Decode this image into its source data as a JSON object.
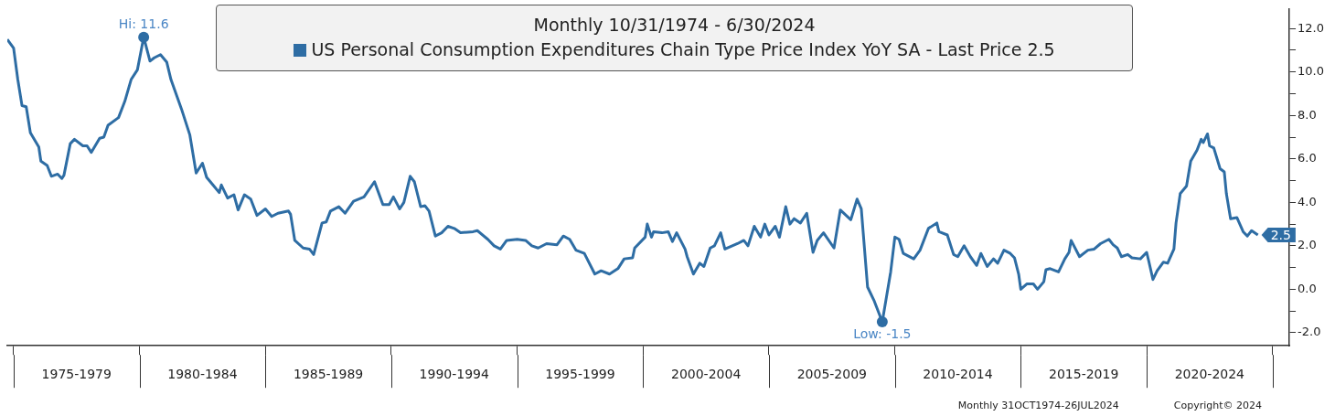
{
  "chart_data": {
    "type": "line",
    "title": "Monthly 10/31/1974 - 6/30/2024",
    "legend": "top",
    "marker": "none",
    "line_style": "solid",
    "grid": false,
    "x": [
      "1974-10",
      "1975-01",
      "1975-03",
      "1975-05",
      "1975-07",
      "1975-09",
      "1976-01",
      "1976-02",
      "1976-05",
      "1976-07",
      "1976-10",
      "1976-12",
      "1977-01",
      "1977-04",
      "1977-06",
      "1977-10",
      "1977-12",
      "1978-02",
      "1978-06",
      "1978-08",
      "1978-10",
      "1979-03",
      "1979-06",
      "1979-09",
      "1979-12",
      "1980-03",
      "1980-06",
      "1980-08",
      "1980-11",
      "1981-02",
      "1981-04",
      "1981-09",
      "1982-01",
      "1982-04",
      "1982-07",
      "1982-09",
      "1982-12",
      "1983-03",
      "1983-04",
      "1983-07",
      "1983-10",
      "1983-12",
      "1984-03",
      "1984-06",
      "1984-09",
      "1985-01",
      "1985-04",
      "1985-07",
      "1985-12",
      "1986-01",
      "1986-03",
      "1986-07",
      "1986-10",
      "1986-12",
      "1987-04",
      "1987-06",
      "1987-08",
      "1987-12",
      "1988-03",
      "1988-07",
      "1988-12",
      "1989-05",
      "1989-09",
      "1989-12",
      "1990-02",
      "1990-05",
      "1990-07",
      "1990-10",
      "1990-12",
      "1991-03",
      "1991-05",
      "1991-07",
      "1991-10",
      "1992-01",
      "1992-04",
      "1992-07",
      "1992-10",
      "1993-04",
      "1993-06",
      "1993-11",
      "1994-02",
      "1994-05",
      "1994-08",
      "1995-01",
      "1995-05",
      "1995-08",
      "1995-11",
      "1996-03",
      "1996-08",
      "1996-11",
      "1997-02",
      "1997-05",
      "1997-09",
      "1998-02",
      "1998-05",
      "1998-09",
      "1999-01",
      "1999-04",
      "1999-08",
      "1999-09",
      "2000-02",
      "2000-03",
      "2000-05",
      "2000-06",
      "2000-10",
      "2001-01",
      "2001-03",
      "2001-05",
      "2001-09",
      "2001-10",
      "2002-01",
      "2002-04",
      "2002-06",
      "2002-09",
      "2002-11",
      "2003-02",
      "2003-04",
      "2003-10",
      "2004-01",
      "2004-03",
      "2004-06",
      "2004-09",
      "2004-11",
      "2005-01",
      "2005-04",
      "2005-06",
      "2005-09",
      "2005-11",
      "2006-01",
      "2006-04",
      "2006-07",
      "2006-10",
      "2006-12",
      "2007-03",
      "2007-08",
      "2007-11",
      "2008-04",
      "2008-07",
      "2008-09",
      "2008-12",
      "2009-03",
      "2009-07",
      "2009-11",
      "2010-01",
      "2010-03",
      "2010-05",
      "2010-10",
      "2011-01",
      "2011-05",
      "2011-09",
      "2011-10",
      "2012-02",
      "2012-05",
      "2012-07",
      "2012-10",
      "2013-01",
      "2013-04",
      "2013-06",
      "2013-09",
      "2013-12",
      "2014-02",
      "2014-05",
      "2014-08",
      "2014-10",
      "2014-12",
      "2015-01",
      "2015-04",
      "2015-07",
      "2015-09",
      "2015-12",
      "2016-01",
      "2016-03",
      "2016-07",
      "2016-10",
      "2016-12",
      "2017-01",
      "2017-05",
      "2017-09",
      "2017-12",
      "2018-03",
      "2018-07",
      "2018-09",
      "2018-11",
      "2019-01",
      "2019-04",
      "2019-06",
      "2019-10",
      "2020-01",
      "2020-02",
      "2020-04",
      "2020-06",
      "2020-09",
      "2020-11",
      "2021-02",
      "2021-03",
      "2021-05",
      "2021-08",
      "2021-10",
      "2022-01",
      "2022-03",
      "2022-04",
      "2022-06",
      "2022-07",
      "2022-09",
      "2022-12",
      "2023-02",
      "2023-03",
      "2023-05",
      "2023-08",
      "2023-11",
      "2024-01",
      "2024-03",
      "2024-06"
    ],
    "series": [
      {
        "name": "US Personal Consumption Expenditures Chain Type Price Index YoY SA - Last Price 2.5",
        "color": "#2e6da4",
        "values": [
          11.5,
          11.1,
          9.65,
          8.45,
          8.4,
          7.2,
          6.55,
          5.9,
          5.7,
          5.2,
          5.3,
          5.1,
          5.25,
          6.7,
          6.9,
          6.6,
          6.6,
          6.3,
          6.95,
          7.0,
          7.55,
          7.9,
          8.65,
          9.65,
          10.1,
          11.6,
          10.5,
          10.65,
          10.8,
          10.45,
          9.65,
          8.3,
          7.1,
          5.35,
          5.8,
          5.15,
          4.8,
          4.45,
          4.8,
          4.2,
          4.35,
          3.65,
          4.35,
          4.15,
          3.4,
          3.7,
          3.35,
          3.5,
          3.6,
          3.45,
          2.25,
          1.9,
          1.85,
          1.6,
          3.05,
          3.1,
          3.6,
          3.8,
          3.5,
          4.05,
          4.25,
          4.95,
          3.9,
          3.9,
          4.25,
          3.7,
          4.0,
          5.2,
          4.95,
          3.8,
          3.85,
          3.6,
          2.45,
          2.6,
          2.9,
          2.8,
          2.6,
          2.65,
          2.7,
          2.3,
          2.0,
          1.85,
          2.25,
          2.3,
          2.25,
          2.0,
          1.9,
          2.1,
          2.05,
          2.45,
          2.3,
          1.8,
          1.65,
          0.7,
          0.85,
          0.7,
          0.95,
          1.4,
          1.45,
          1.9,
          2.4,
          3.0,
          2.4,
          2.65,
          2.6,
          2.65,
          2.2,
          2.6,
          1.85,
          1.5,
          0.7,
          1.2,
          1.05,
          1.9,
          2.0,
          2.6,
          1.85,
          2.1,
          2.25,
          2.0,
          2.9,
          2.4,
          3.0,
          2.5,
          2.9,
          2.4,
          3.8,
          3.0,
          3.25,
          3.05,
          3.5,
          1.7,
          2.25,
          2.6,
          1.9,
          3.65,
          3.2,
          4.15,
          3.7,
          0.1,
          -0.5,
          -1.5,
          0.8,
          2.4,
          2.3,
          1.65,
          1.4,
          1.8,
          2.8,
          3.05,
          2.65,
          2.5,
          1.6,
          1.5,
          2.0,
          1.5,
          1.1,
          1.65,
          1.05,
          1.4,
          1.2,
          1.8,
          1.65,
          1.45,
          0.7,
          0.0,
          0.25,
          0.25,
          0.0,
          0.35,
          0.9,
          0.95,
          0.8,
          1.4,
          1.7,
          2.25,
          1.5,
          1.8,
          1.85,
          2.1,
          2.3,
          2.05,
          1.9,
          1.5,
          1.6,
          1.45,
          1.4,
          1.7,
          1.3,
          0.45,
          0.85,
          1.25,
          1.2,
          1.85,
          3.05,
          4.4,
          4.75,
          5.9,
          6.4,
          6.9,
          6.75,
          7.15,
          6.6,
          6.5,
          5.55,
          5.4,
          4.4,
          3.25,
          3.3,
          2.65,
          2.45,
          2.7,
          2.5
        ]
      }
    ],
    "xlim": [
      "1974-10",
      "2025-09"
    ],
    "xticks": [
      {
        "value": "1975-01",
        "label": null
      },
      {
        "value": "1977-07",
        "label": "1975-1979"
      },
      {
        "value": "1980-01",
        "label": null
      },
      {
        "value": "1982-07",
        "label": "1980-1984"
      },
      {
        "value": "1985-01",
        "label": null
      },
      {
        "value": "1987-07",
        "label": "1985-1989"
      },
      {
        "value": "1990-01",
        "label": null
      },
      {
        "value": "1992-07",
        "label": "1990-1994"
      },
      {
        "value": "1995-01",
        "label": null
      },
      {
        "value": "1997-07",
        "label": "1995-1999"
      },
      {
        "value": "2000-01",
        "label": null
      },
      {
        "value": "2002-07",
        "label": "2000-2004"
      },
      {
        "value": "2005-01",
        "label": null
      },
      {
        "value": "2007-07",
        "label": "2005-2009"
      },
      {
        "value": "2010-01",
        "label": null
      },
      {
        "value": "2012-07",
        "label": "2010-2014"
      },
      {
        "value": "2015-01",
        "label": null
      },
      {
        "value": "2017-07",
        "label": "2015-2019"
      },
      {
        "value": "2020-01",
        "label": null
      },
      {
        "value": "2022-07",
        "label": "2020-2024"
      },
      {
        "value": "2025-01",
        "label": null
      }
    ],
    "ylim": [
      -2.6,
      12.9
    ],
    "yticks": [
      {
        "value": -2,
        "label": "-2.0"
      },
      {
        "value": -1,
        "label": null
      },
      {
        "value": 0,
        "label": "0.0"
      },
      {
        "value": 1,
        "label": null
      },
      {
        "value": 2,
        "label": "2.0"
      },
      {
        "value": 3,
        "label": null
      },
      {
        "value": 4,
        "label": "4.0"
      },
      {
        "value": 5,
        "label": null
      },
      {
        "value": 6,
        "label": "6.0"
      },
      {
        "value": 7,
        "label": null
      },
      {
        "value": 8,
        "label": "8.0"
      },
      {
        "value": 9,
        "label": null
      },
      {
        "value": 10,
        "label": "10.0"
      },
      {
        "value": 11,
        "label": null
      },
      {
        "value": 12,
        "label": "12.0"
      }
    ],
    "annotations": [
      {
        "text": "Hi: 11.6",
        "x": "1980-03",
        "y": 11.6
      },
      {
        "text": "Low: -1.5",
        "x": "2009-07",
        "y": -1.5
      },
      {
        "text": "2.5",
        "x": "2024-06",
        "y": 2.5
      },
      "Monthly 31OCT1974-26JUL2024",
      "Copyright© 2024"
    ]
  }
}
